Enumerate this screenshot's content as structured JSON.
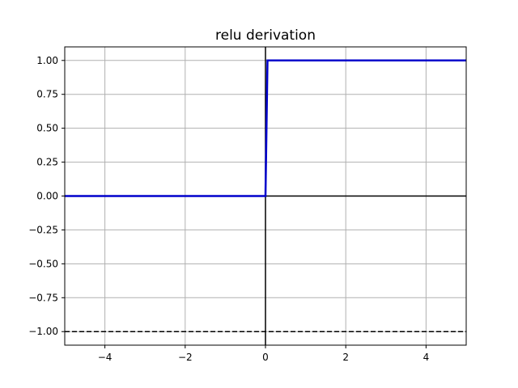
{
  "chart_data": {
    "type": "line",
    "title": "relu derivation",
    "xlabel": "",
    "ylabel": "",
    "xlim": [
      -5,
      5
    ],
    "ylim": [
      -1.1,
      1.1
    ],
    "xticks": [
      -4,
      -2,
      0,
      2,
      4
    ],
    "xtick_labels": [
      "−4",
      "−2",
      "0",
      "2",
      "4"
    ],
    "yticks": [
      -1.0,
      -0.75,
      -0.5,
      -0.25,
      0.0,
      0.25,
      0.5,
      0.75,
      1.0
    ],
    "ytick_labels": [
      "−1.00",
      "−0.75",
      "−0.50",
      "−0.25",
      "0.00",
      "0.25",
      "0.50",
      "0.75",
      "1.00"
    ],
    "grid": true,
    "series": [
      {
        "x": [
          -5,
          0,
          0.05,
          5
        ],
        "y": [
          0,
          0,
          1,
          1
        ],
        "color": "#0000cc",
        "style": "solid"
      }
    ],
    "reference_lines": [
      {
        "orientation": "horizontal",
        "value": 0,
        "color": "#000000",
        "style": "solid"
      },
      {
        "orientation": "vertical",
        "value": 0,
        "color": "#000000",
        "style": "solid"
      },
      {
        "orientation": "horizontal",
        "value": -1,
        "color": "#000000",
        "style": "dashed"
      }
    ]
  }
}
